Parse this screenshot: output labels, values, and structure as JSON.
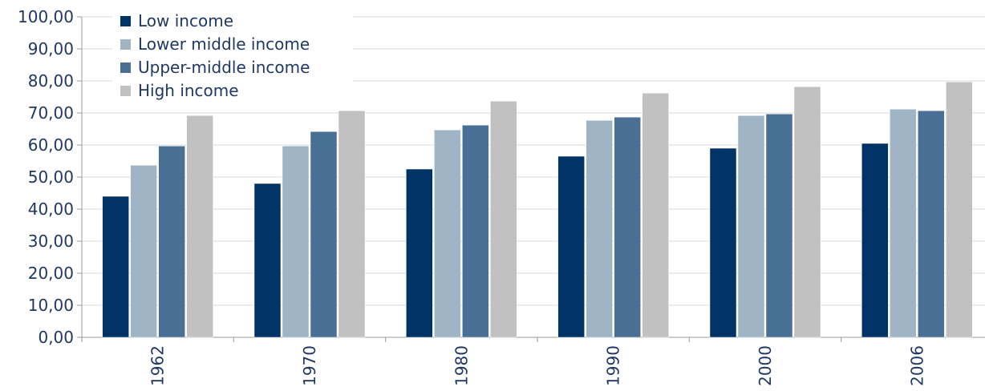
{
  "chart_data": {
    "type": "bar",
    "title": "",
    "xlabel": "",
    "ylabel": "",
    "categories": [
      "1962",
      "1970",
      "1980",
      "1990",
      "2000",
      "2006"
    ],
    "series": [
      {
        "name": "Low income",
        "color": "#003366",
        "values": [
          44.0,
          48.0,
          52.5,
          56.5,
          59.0,
          60.5
        ]
      },
      {
        "name": "Lower middle income",
        "color": "#9fb4c5",
        "values": [
          53.7,
          59.7,
          64.7,
          67.7,
          69.2,
          71.2
        ]
      },
      {
        "name": "Upper-middle income",
        "color": "#4a6f95",
        "values": [
          59.7,
          64.2,
          66.2,
          68.7,
          69.7,
          70.7
        ]
      },
      {
        "name": "High income",
        "color": "#c1c1c1",
        "values": [
          69.2,
          70.7,
          73.7,
          76.2,
          78.2,
          79.7
        ]
      }
    ],
    "yticks": [
      "0,00",
      "10,00",
      "20,00",
      "30,00",
      "40,00",
      "50,00",
      "60,00",
      "70,00",
      "80,00",
      "90,00",
      "100,00"
    ],
    "ylim": [
      0,
      100
    ],
    "grid": "horizontal",
    "legend_position": "top-left"
  }
}
